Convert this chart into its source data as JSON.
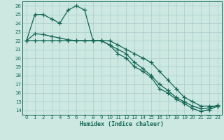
{
  "xlabel": "Humidex (Indice chaleur)",
  "bg_color": "#cce8e0",
  "grid_color": "#aacccc",
  "line_color": "#116655",
  "xlim": [
    -0.5,
    23.5
  ],
  "ylim": [
    13.5,
    26.5
  ],
  "xticks": [
    0,
    1,
    2,
    3,
    4,
    5,
    6,
    7,
    8,
    9,
    10,
    11,
    12,
    13,
    14,
    15,
    16,
    17,
    18,
    19,
    20,
    21,
    22,
    23
  ],
  "yticks": [
    14,
    15,
    16,
    17,
    18,
    19,
    20,
    21,
    22,
    23,
    24,
    25,
    26
  ],
  "series1_x": [
    0,
    1,
    2,
    3,
    4,
    5,
    6,
    7,
    8,
    9,
    10,
    11,
    12,
    13,
    14,
    15,
    16,
    17,
    18,
    19,
    20,
    21,
    22,
    23
  ],
  "series1_y": [
    22,
    25,
    25,
    24.5,
    24,
    25.5,
    26,
    25.5,
    22,
    22,
    21.5,
    20.5,
    20,
    19,
    18.5,
    17.8,
    16.5,
    16,
    15.3,
    14.8,
    14.2,
    13.9,
    14.1,
    14.5
  ],
  "series2_x": [
    0,
    1,
    2,
    3,
    4,
    5,
    6,
    7,
    8,
    9,
    10,
    11,
    12,
    13,
    14,
    15,
    16,
    17,
    18,
    19,
    20,
    21,
    22,
    23
  ],
  "series2_y": [
    22,
    22.8,
    22.7,
    22.5,
    22.3,
    22.1,
    22,
    22,
    22,
    22,
    21.5,
    21,
    20.5,
    19.5,
    18.8,
    18,
    17,
    16.3,
    15.5,
    15,
    14.5,
    14.2,
    14.3,
    14.6
  ],
  "series3_x": [
    0,
    1,
    2,
    3,
    4,
    5,
    6,
    7,
    8,
    9,
    10,
    11,
    12,
    13,
    14,
    15,
    16,
    17,
    18,
    19,
    20,
    21,
    22,
    23
  ],
  "series3_y": [
    22,
    22,
    22,
    22,
    22,
    22,
    22,
    22,
    22,
    22,
    22,
    21.5,
    21,
    20.5,
    20,
    19.5,
    18.5,
    17.5,
    16.5,
    15.5,
    15,
    14.5,
    14.5,
    14.5
  ],
  "tick_fontsize": 5.0,
  "xlabel_fontsize": 6.0
}
